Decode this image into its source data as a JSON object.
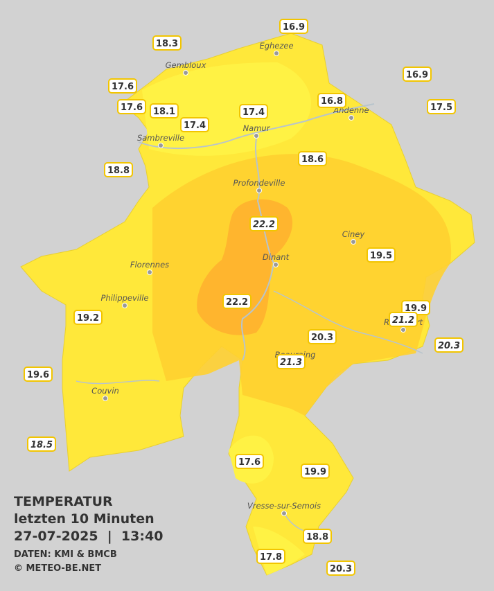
{
  "legend": {
    "title": "TEMPERATUR",
    "subtitle": "letzten 10 Minuten",
    "datetime": "27-07-2025  |  13:40",
    "source": "DATEN: KMI & BMCB",
    "credit": "© METEO-BE.NET"
  },
  "towns": [
    "Eghezee",
    "Gembloux",
    "Andenne",
    "Namur",
    "Sambreville",
    "Profondeville",
    "Ciney",
    "Dinant",
    "Florennes",
    "Philippeville",
    "Rochefort",
    "Beauraing",
    "Couvin",
    "Vresse-sur-Semois"
  ],
  "stations": [
    {
      "value": 16.9,
      "italic": false
    },
    {
      "value": 18.3,
      "italic": false
    },
    {
      "value": 16.9,
      "italic": false
    },
    {
      "value": 17.6,
      "italic": false
    },
    {
      "value": 17.6,
      "italic": false
    },
    {
      "value": 18.1,
      "italic": false
    },
    {
      "value": 17.4,
      "italic": false
    },
    {
      "value": 16.8,
      "italic": false
    },
    {
      "value": 17.5,
      "italic": false
    },
    {
      "value": 17.4,
      "italic": false
    },
    {
      "value": 18.6,
      "italic": false
    },
    {
      "value": 18.8,
      "italic": false
    },
    {
      "value": 22.2,
      "italic": true
    },
    {
      "value": 19.5,
      "italic": false
    },
    {
      "value": 22.2,
      "italic": false
    },
    {
      "value": 19.9,
      "italic": false
    },
    {
      "value": 21.2,
      "italic": true
    },
    {
      "value": 19.2,
      "italic": false
    },
    {
      "value": 20.3,
      "italic": false
    },
    {
      "value": 20.3,
      "italic": true
    },
    {
      "value": 21.3,
      "italic": true
    },
    {
      "value": 19.6,
      "italic": false
    },
    {
      "value": 18.5,
      "italic": true
    },
    {
      "value": 17.6,
      "italic": false
    },
    {
      "value": 19.9,
      "italic": false
    },
    {
      "value": 18.8,
      "italic": false
    },
    {
      "value": 17.8,
      "italic": false
    },
    {
      "value": 20.3,
      "italic": false
    }
  ]
}
